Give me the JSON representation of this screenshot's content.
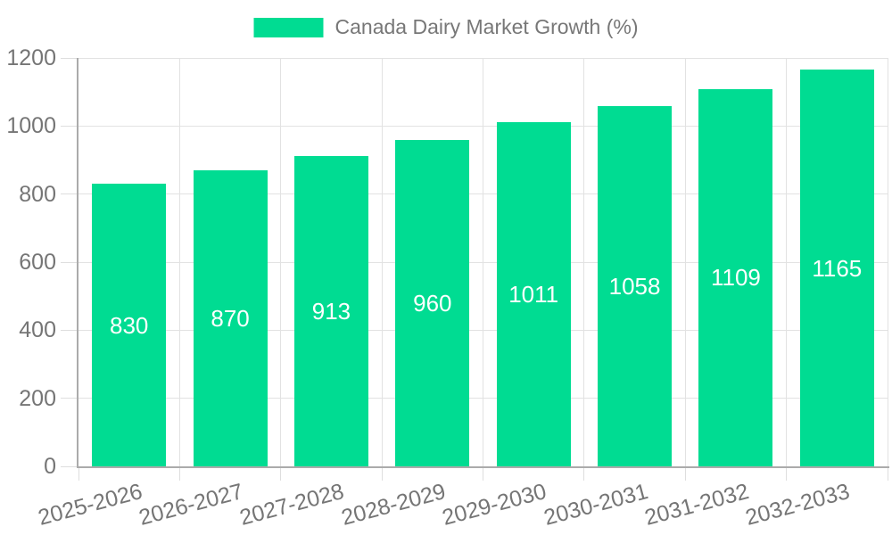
{
  "chart_data": {
    "type": "bar",
    "title": "Canada Dairy Market Growth (%)",
    "categories": [
      "2025-2026",
      "2026-2027",
      "2027-2028",
      "2028-2029",
      "2029-2030",
      "2030-2031",
      "2031-2032",
      "2032-2033"
    ],
    "values": [
      830,
      870,
      913,
      960,
      1011,
      1058,
      1109,
      1165
    ],
    "xlabel": "",
    "ylabel": "",
    "ylim": [
      0,
      1200
    ],
    "yticks": [
      0,
      200,
      400,
      600,
      800,
      1000,
      1200
    ],
    "grid": true,
    "legend_position": "top-center",
    "value_label_position": "inside-middle",
    "x_label_rotation_deg": -15,
    "colors": {
      "bar": "#00DC92",
      "value_label": "#ffffff",
      "axis_text": "#757575",
      "legend_text": "#777777",
      "grid_line": "#e2e2e2",
      "tick_line": "#dedede",
      "axis_line": "#ababab",
      "background": "#ffffff"
    }
  }
}
